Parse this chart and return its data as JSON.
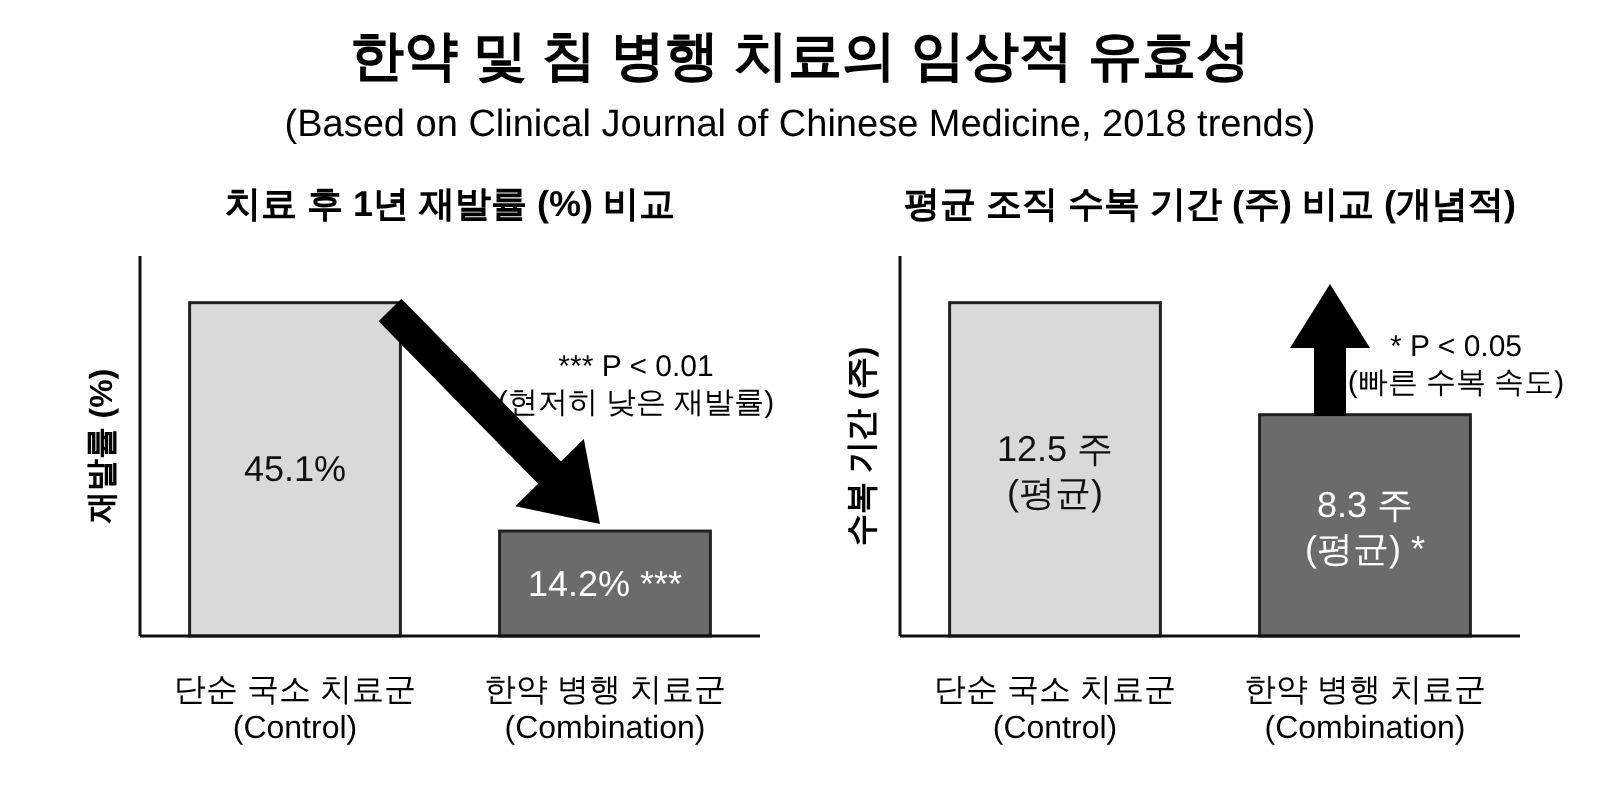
{
  "chart_data": [
    {
      "type": "bar",
      "title": "치료 후 1년 재발률 (%) 비교",
      "ylabel": "재발률 (%)",
      "categories": [
        "단순 국소 치료군\n(Control)",
        "한약 병행 치료군\n(Combination)"
      ],
      "values": [
        45.1,
        14.2
      ],
      "colors": [
        "#d9d9d9",
        "#6b6b6b"
      ],
      "value_labels": [
        "45.1%",
        "14.2% ***"
      ],
      "annotations": [
        "한약 및 침 병행 치료의 임상적 유효성",
        "(Based on Clinical Journal of Chinese Medicine, 2018 trends)",
        "*** P < 0.01\n(현저히 낮은 재발률)"
      ]
    },
    {
      "type": "bar",
      "title": "평균 조직 수복 기간 (주) 비교 (개념적)",
      "ylabel": "수복 기간 (주)",
      "categories": [
        "단순 국소 치료군\n(Control)",
        "한약 병행 치료군\n(Combination)"
      ],
      "values": [
        12.5,
        8.3
      ],
      "colors": [
        "#d9d9d9",
        "#6b6b6b"
      ],
      "value_labels": [
        "12.5 주\n(평균)",
        "8.3 주\n(평균) *"
      ],
      "annotations": [
        "* P < 0.05\n(빠른 수복 속도)"
      ]
    }
  ]
}
